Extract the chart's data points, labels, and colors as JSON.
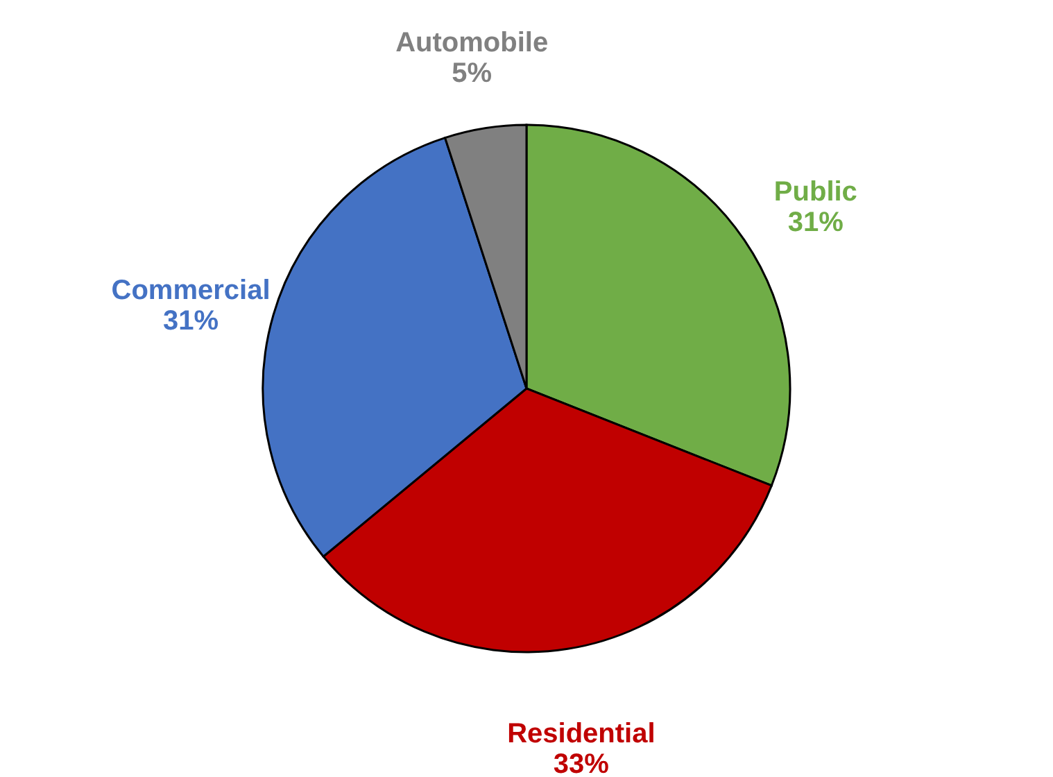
{
  "chart_data": {
    "type": "pie",
    "categories": [
      "Public",
      "Residential",
      "Commercial",
      "Automobile"
    ],
    "values": [
      31,
      33,
      31,
      5
    ],
    "colors": [
      "#70ad47",
      "#c00000",
      "#4472c4",
      "#808080"
    ],
    "value_labels": [
      "31%",
      "33%",
      "31%",
      "5%"
    ]
  }
}
